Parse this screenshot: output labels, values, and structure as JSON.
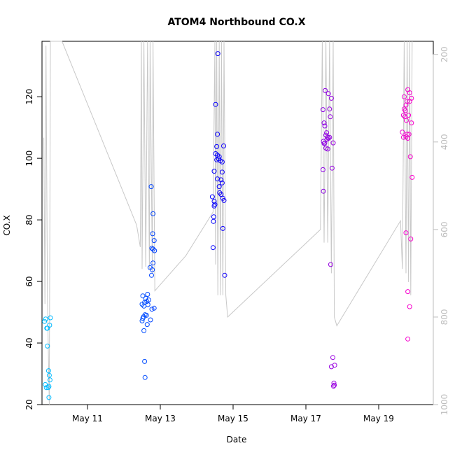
{
  "chart_data": {
    "type": "scatter",
    "title": "ATOM4 Northbound CO.X",
    "xlabel": "Date",
    "ylabel": "CO.X",
    "x_ticks": [
      "May 11",
      "May 13",
      "May 15",
      "May 17",
      "May 19"
    ],
    "y_ticks": [
      20,
      40,
      60,
      80,
      100,
      120
    ],
    "y2_ticks": [
      200,
      400,
      600,
      800,
      1000
    ],
    "ylim": [
      20,
      138
    ],
    "y2lim": [
      1000,
      170
    ],
    "xlim": [
      "May 9 18:00",
      "May 20 12:00"
    ],
    "grid": false,
    "legend": "none",
    "colors": {
      "series_gradient": [
        "#00bfff",
        "#0000ff",
        "#ff00cc"
      ],
      "secondary_line": "#c8c8c8",
      "secondary_axis": "#bdbdbd"
    },
    "series": [
      {
        "points": [
          [
            9.85,
            47.8
          ],
          [
            9.82,
            47.0
          ],
          [
            9.88,
            44.8
          ],
          [
            9.9,
            44.8
          ],
          [
            9.96,
            45.8
          ],
          [
            9.98,
            48.2
          ],
          [
            9.9,
            39.0
          ],
          [
            9.93,
            31.0
          ],
          [
            9.95,
            29.5
          ],
          [
            9.97,
            28.0
          ],
          [
            9.84,
            26.5
          ],
          [
            9.87,
            25.5
          ],
          [
            9.92,
            25.5
          ],
          [
            9.94,
            25.9
          ],
          [
            9.94,
            22.3
          ],
          [
            12.52,
            55.3
          ],
          [
            12.6,
            54.5
          ],
          [
            12.65,
            55.8
          ],
          [
            12.57,
            53.2
          ],
          [
            12.63,
            53.5
          ],
          [
            12.68,
            54.0
          ],
          [
            12.5,
            52.6
          ],
          [
            12.55,
            52.0
          ],
          [
            12.66,
            52.5
          ],
          [
            12.72,
            64.5
          ],
          [
            12.78,
            63.8
          ],
          [
            12.8,
            66.0
          ],
          [
            12.76,
            62.0
          ],
          [
            12.83,
            73.3
          ],
          [
            12.8,
            70.5
          ],
          [
            12.77,
            70.8
          ],
          [
            12.84,
            70.0
          ],
          [
            12.79,
            75.5
          ],
          [
            12.8,
            82.0
          ],
          [
            12.75,
            90.8
          ],
          [
            12.5,
            47.2
          ],
          [
            12.54,
            48.5
          ],
          [
            12.58,
            49.2
          ],
          [
            12.62,
            49.0
          ],
          [
            12.52,
            48.0
          ],
          [
            12.55,
            44.0
          ],
          [
            12.64,
            46.0
          ],
          [
            12.73,
            47.5
          ],
          [
            12.77,
            51.0
          ],
          [
            12.83,
            51.3
          ],
          [
            12.57,
            34.0
          ],
          [
            12.58,
            28.8
          ],
          [
            14.58,
            134.0
          ],
          [
            14.52,
            117.5
          ],
          [
            14.57,
            107.8
          ],
          [
            14.55,
            103.8
          ],
          [
            14.74,
            104.0
          ],
          [
            14.52,
            101.5
          ],
          [
            14.57,
            101.0
          ],
          [
            14.62,
            100.5
          ],
          [
            14.6,
            99.8
          ],
          [
            14.65,
            99.2
          ],
          [
            14.7,
            98.8
          ],
          [
            14.55,
            99.5
          ],
          [
            14.48,
            95.8
          ],
          [
            14.7,
            95.5
          ],
          [
            14.57,
            93.3
          ],
          [
            14.67,
            93.0
          ],
          [
            14.7,
            92.0
          ],
          [
            14.62,
            90.8
          ],
          [
            14.63,
            88.8
          ],
          [
            14.67,
            88.3
          ],
          [
            14.72,
            87.0
          ],
          [
            14.75,
            86.3
          ],
          [
            14.43,
            87.5
          ],
          [
            14.48,
            86.0
          ],
          [
            14.5,
            85.0
          ],
          [
            14.48,
            84.5
          ],
          [
            14.47,
            81.0
          ],
          [
            14.46,
            79.5
          ],
          [
            14.72,
            77.2
          ],
          [
            14.45,
            71.0
          ],
          [
            14.77,
            62.0
          ],
          [
            17.53,
            122.0
          ],
          [
            17.62,
            121.0
          ],
          [
            17.7,
            119.5
          ],
          [
            17.47,
            115.8
          ],
          [
            17.65,
            116.0
          ],
          [
            17.67,
            113.5
          ],
          [
            17.5,
            111.5
          ],
          [
            17.52,
            110.5
          ],
          [
            17.57,
            108.3
          ],
          [
            17.55,
            107.5
          ],
          [
            17.6,
            106.8
          ],
          [
            17.48,
            105.5
          ],
          [
            17.52,
            105.0
          ],
          [
            17.58,
            106.2
          ],
          [
            17.62,
            106.5
          ],
          [
            17.65,
            106.8
          ],
          [
            17.75,
            105.0
          ],
          [
            17.5,
            104.8
          ],
          [
            17.55,
            103.3
          ],
          [
            17.6,
            103.0
          ],
          [
            17.47,
            96.3
          ],
          [
            17.72,
            96.8
          ],
          [
            17.48,
            89.3
          ],
          [
            17.68,
            65.5
          ],
          [
            17.74,
            35.3
          ],
          [
            17.7,
            32.3
          ],
          [
            17.79,
            32.8
          ],
          [
            17.77,
            27.0
          ],
          [
            17.76,
            26.0
          ],
          [
            17.78,
            26.3
          ],
          [
            19.7,
            120.0
          ],
          [
            19.8,
            122.3
          ],
          [
            19.85,
            121.3
          ],
          [
            19.9,
            119.5
          ],
          [
            19.78,
            118.5
          ],
          [
            19.75,
            117.3
          ],
          [
            19.85,
            118.5
          ],
          [
            19.7,
            116.0
          ],
          [
            19.73,
            115.5
          ],
          [
            19.82,
            114.0
          ],
          [
            19.68,
            114.0
          ],
          [
            19.72,
            113.5
          ],
          [
            19.76,
            112.3
          ],
          [
            19.9,
            111.5
          ],
          [
            19.65,
            108.5
          ],
          [
            19.78,
            107.8
          ],
          [
            19.83,
            107.8
          ],
          [
            19.75,
            107.0
          ],
          [
            19.68,
            106.8
          ],
          [
            19.8,
            106.5
          ],
          [
            19.87,
            100.5
          ],
          [
            19.92,
            93.8
          ],
          [
            19.75,
            75.8
          ],
          [
            19.88,
            73.8
          ],
          [
            19.8,
            56.7
          ],
          [
            19.85,
            51.8
          ],
          [
            19.8,
            41.3
          ]
        ]
      },
      {
        "axis": "right",
        "type": "line",
        "points": [
          [
            9.8,
            390
          ],
          [
            9.83,
            770
          ],
          [
            9.86,
            180
          ],
          [
            9.9,
            760
          ],
          [
            9.95,
            1000
          ],
          [
            9.98,
            150
          ],
          [
            10.3,
            140
          ],
          [
            12.35,
            590
          ],
          [
            12.45,
            640
          ],
          [
            12.48,
            100
          ],
          [
            12.5,
            690
          ],
          [
            12.55,
            100
          ],
          [
            12.6,
            685
          ],
          [
            12.65,
            100
          ],
          [
            12.7,
            690
          ],
          [
            12.72,
            100
          ],
          [
            12.78,
            700
          ],
          [
            12.8,
            100
          ],
          [
            12.85,
            740
          ],
          [
            13.7,
            660
          ],
          [
            14.45,
            560
          ],
          [
            14.5,
            100
          ],
          [
            14.52,
            680
          ],
          [
            14.55,
            100
          ],
          [
            14.58,
            750
          ],
          [
            14.62,
            100
          ],
          [
            14.65,
            750
          ],
          [
            14.68,
            100
          ],
          [
            14.72,
            750
          ],
          [
            14.75,
            100
          ],
          [
            14.8,
            750
          ],
          [
            14.85,
            800
          ],
          [
            17.4,
            600
          ],
          [
            17.45,
            100
          ],
          [
            17.5,
            630
          ],
          [
            17.55,
            100
          ],
          [
            17.6,
            630
          ],
          [
            17.65,
            100
          ],
          [
            17.7,
            700
          ],
          [
            17.75,
            100
          ],
          [
            17.78,
            800
          ],
          [
            17.85,
            820
          ],
          [
            19.6,
            580
          ],
          [
            19.65,
            690
          ],
          [
            19.7,
            100
          ],
          [
            19.75,
            700
          ],
          [
            19.78,
            100
          ],
          [
            19.82,
            720
          ],
          [
            19.85,
            100
          ],
          [
            19.88,
            750
          ],
          [
            19.92,
            100
          ]
        ]
      }
    ]
  }
}
